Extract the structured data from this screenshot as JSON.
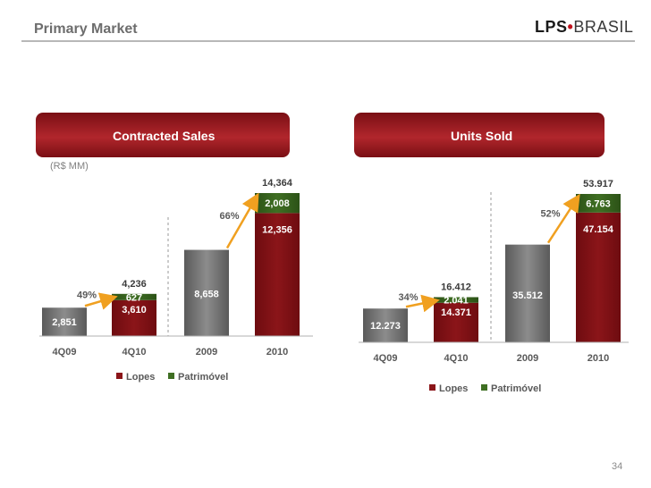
{
  "header": {
    "title": "Primary Market",
    "logo_lps": "LPS",
    "logo_dot": "•",
    "logo_brasil": "BRASIL",
    "page_number": "34"
  },
  "colors": {
    "accent": "#8b1519",
    "lopes": "#8b1519",
    "patrimovel": "#3f6f23",
    "gray_bar": "#767676"
  },
  "left_panel": {
    "header": "Contracted Sales",
    "unit_label": "(R$ MM)"
  },
  "right_panel": {
    "header": "Units Sold"
  },
  "chart_data": [
    {
      "type": "bar",
      "title": "Contracted Sales",
      "ylabel": "(R$ MM)",
      "categories": [
        "4Q09",
        "4Q10",
        "2009",
        "2010"
      ],
      "values_total": [
        2851,
        4236,
        8658,
        14364
      ],
      "total_labels": [
        "2,851",
        "4,236",
        "8,658",
        "14,364"
      ],
      "series": [
        {
          "name": "Lopes",
          "values": [
            null,
            3610,
            null,
            12356
          ],
          "labels": [
            "",
            "3,610",
            "",
            "12,356"
          ]
        },
        {
          "name": "Patrimóvel",
          "values": [
            null,
            627,
            null,
            2008
          ],
          "labels": [
            "",
            "627",
            "",
            "2,008"
          ]
        }
      ],
      "growth": [
        {
          "from": "4Q09",
          "to": "4Q10",
          "label": "49%"
        },
        {
          "from": "2009",
          "to": "2010",
          "label": "66%"
        }
      ],
      "legend": [
        "Lopes",
        "Patrimóvel"
      ],
      "ylim": [
        0,
        16000
      ]
    },
    {
      "type": "bar",
      "title": "Units Sold",
      "categories": [
        "4Q09",
        "4Q10",
        "2009",
        "2010"
      ],
      "values_total": [
        12273,
        16412,
        35512,
        53917
      ],
      "total_labels": [
        "12.273",
        "16.412",
        "35.512",
        "53.917"
      ],
      "series": [
        {
          "name": "Lopes",
          "values": [
            null,
            14371,
            null,
            47154
          ],
          "labels": [
            "",
            "14.371",
            "",
            "47.154"
          ]
        },
        {
          "name": "Patrimóvel",
          "values": [
            null,
            2041,
            null,
            6763
          ],
          "labels": [
            "",
            "2.041",
            "",
            "6.763"
          ]
        }
      ],
      "growth": [
        {
          "from": "4Q09",
          "to": "4Q10",
          "label": "34%"
        },
        {
          "from": "2009",
          "to": "2010",
          "label": "52%"
        }
      ],
      "legend": [
        "Lopes",
        "Patrimóvel"
      ],
      "ylim": [
        0,
        60000
      ]
    }
  ]
}
